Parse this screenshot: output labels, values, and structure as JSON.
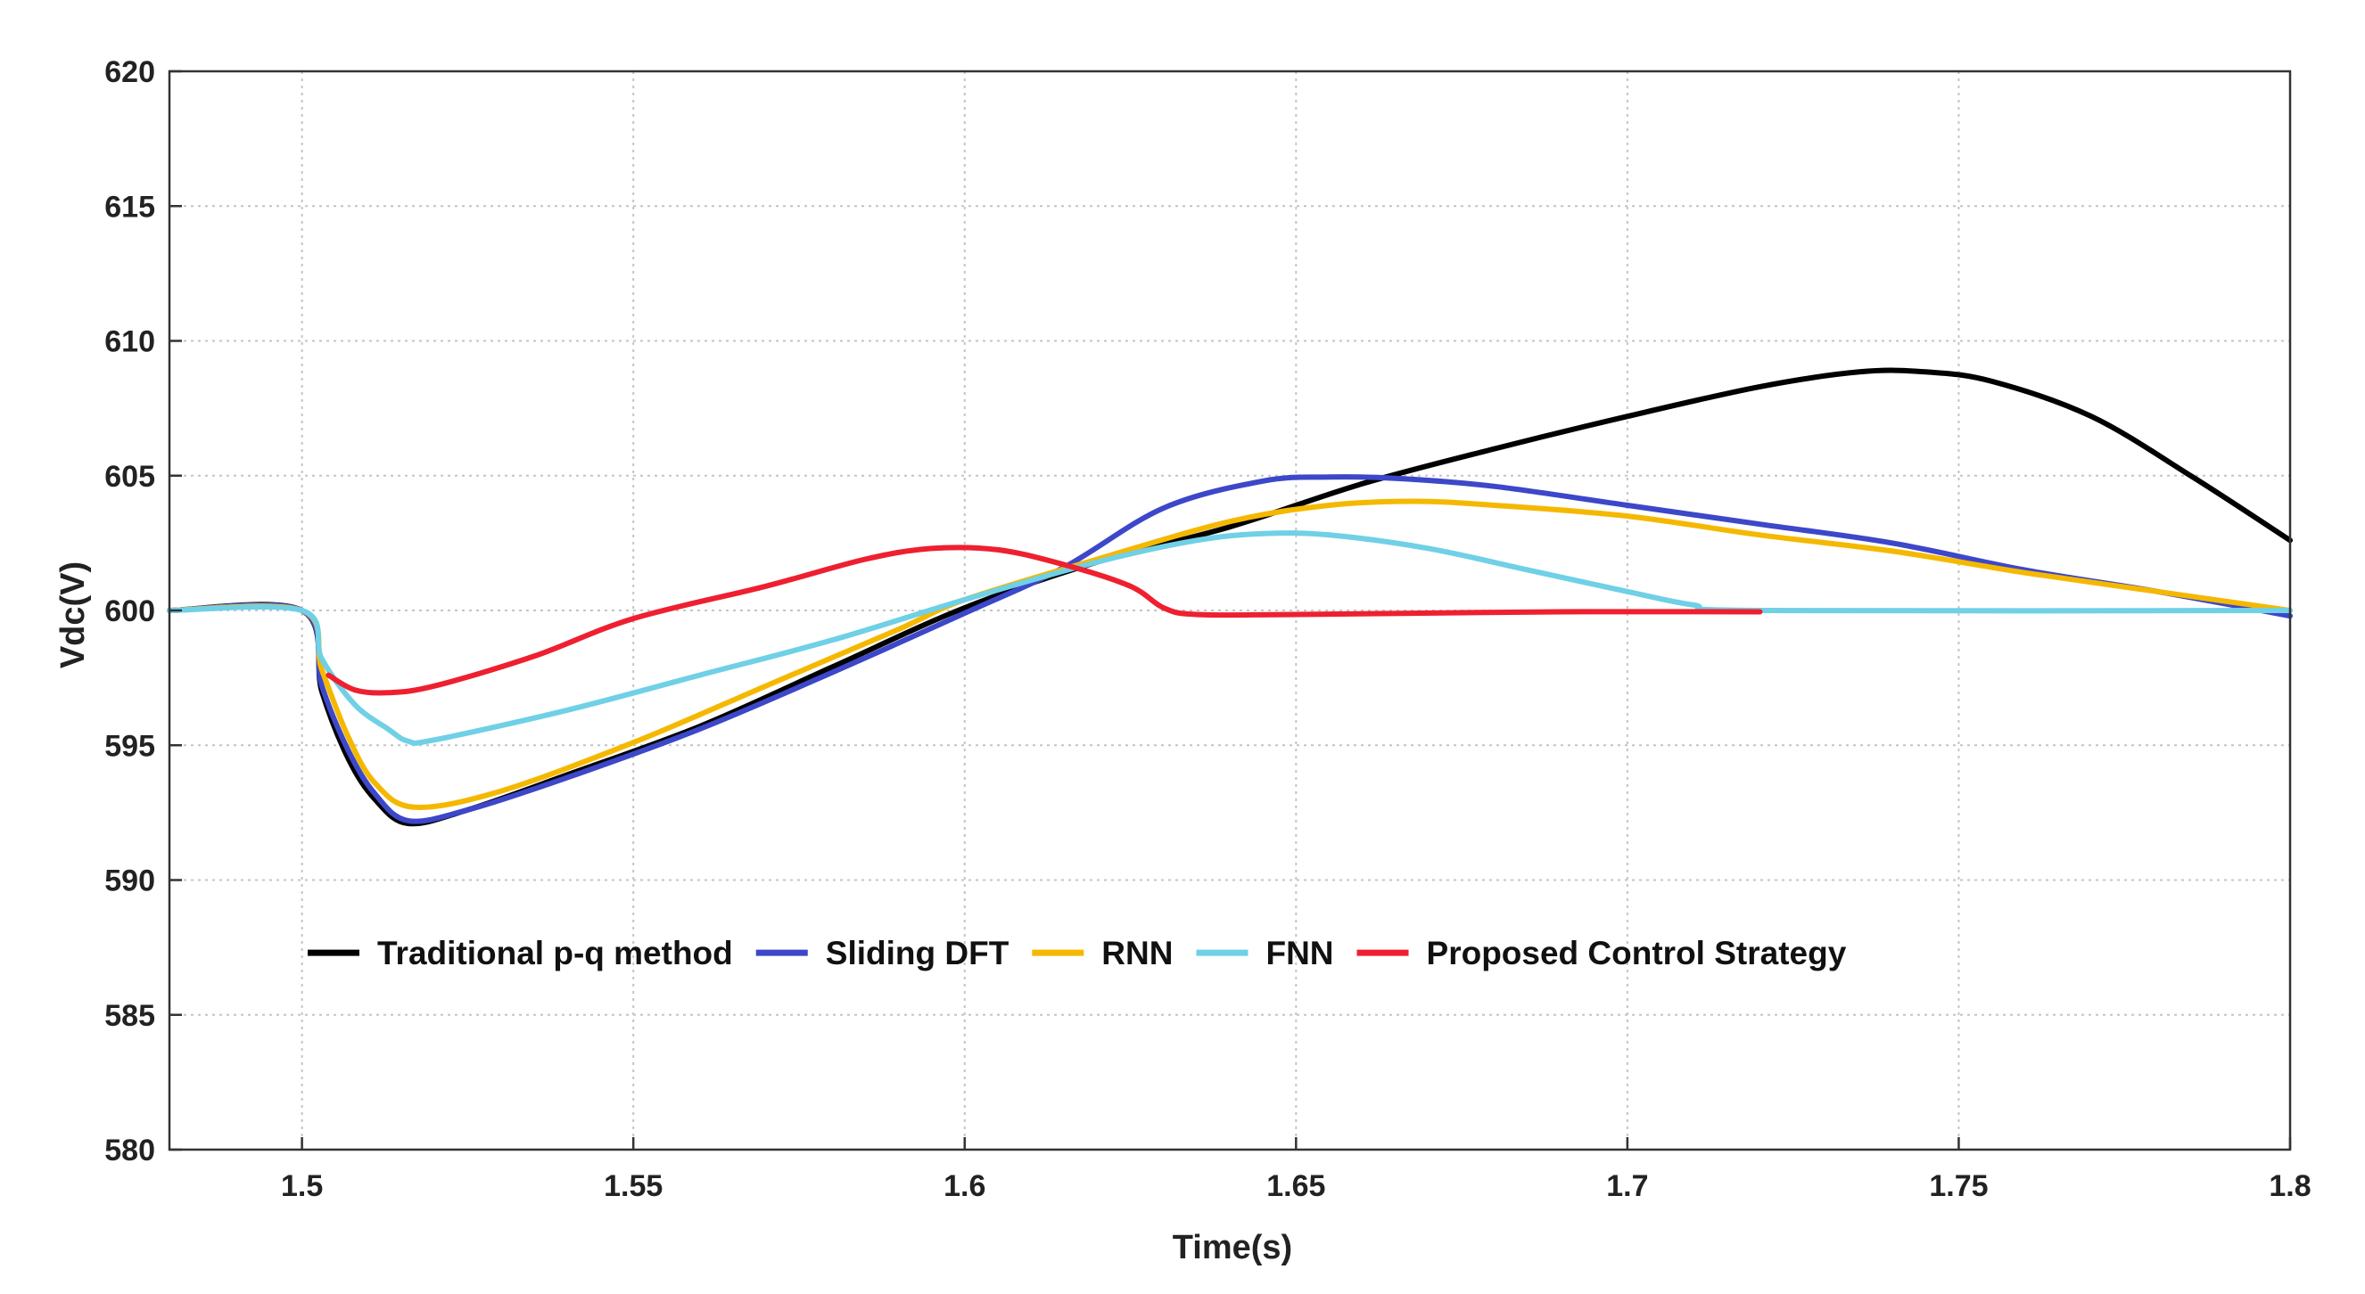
{
  "chart_data": {
    "type": "line",
    "title": "",
    "xlabel": "Time(s)",
    "ylabel": "Vdc(V)",
    "xlim": [
      1.48,
      1.8
    ],
    "ylim": [
      580,
      620
    ],
    "grid": true,
    "legend_position": "lower-center",
    "x_ticks": [
      1.5,
      1.55,
      1.6,
      1.65,
      1.7,
      1.75,
      1.8
    ],
    "x_tick_labels": [
      "1.5",
      "1.55",
      "1.6",
      "1.65",
      "1.7",
      "1.75",
      "1.8"
    ],
    "y_ticks": [
      580,
      585,
      590,
      595,
      600,
      605,
      610,
      615,
      620
    ],
    "y_tick_labels": [
      "580",
      "585",
      "590",
      "595",
      "600",
      "605",
      "610",
      "615",
      "620"
    ],
    "series": [
      {
        "name": "Traditional p-q method",
        "color": "#000000",
        "points": [
          [
            1.48,
            600
          ],
          [
            1.5,
            600
          ],
          [
            1.503,
            597.0
          ],
          [
            1.507,
            594.5
          ],
          [
            1.511,
            593.0
          ],
          [
            1.516,
            592.1
          ],
          [
            1.525,
            592.6
          ],
          [
            1.54,
            593.9
          ],
          [
            1.56,
            595.7
          ],
          [
            1.58,
            597.9
          ],
          [
            1.6,
            600.1
          ],
          [
            1.62,
            601.8
          ],
          [
            1.64,
            603.1
          ],
          [
            1.66,
            604.7
          ],
          [
            1.68,
            606.0
          ],
          [
            1.7,
            607.2
          ],
          [
            1.72,
            608.3
          ],
          [
            1.735,
            608.85
          ],
          [
            1.745,
            608.85
          ],
          [
            1.755,
            608.5
          ],
          [
            1.77,
            607.2
          ],
          [
            1.785,
            605.0
          ],
          [
            1.8,
            602.6
          ]
        ]
      },
      {
        "name": "Sliding DFT",
        "color": "#3d47c9",
        "points": [
          [
            1.48,
            600
          ],
          [
            1.5,
            600
          ],
          [
            1.503,
            597.2
          ],
          [
            1.507,
            594.8
          ],
          [
            1.511,
            593.2
          ],
          [
            1.516,
            592.2
          ],
          [
            1.525,
            592.6
          ],
          [
            1.54,
            593.8
          ],
          [
            1.56,
            595.6
          ],
          [
            1.58,
            597.7
          ],
          [
            1.6,
            599.9
          ],
          [
            1.615,
            601.6
          ],
          [
            1.63,
            603.8
          ],
          [
            1.645,
            604.8
          ],
          [
            1.655,
            604.95
          ],
          [
            1.665,
            604.9
          ],
          [
            1.68,
            604.6
          ],
          [
            1.7,
            603.9
          ],
          [
            1.72,
            603.2
          ],
          [
            1.74,
            602.5
          ],
          [
            1.76,
            601.5
          ],
          [
            1.78,
            600.7
          ],
          [
            1.8,
            599.8
          ]
        ]
      },
      {
        "name": "RNN",
        "color": "#f5b800",
        "points": [
          [
            1.48,
            600
          ],
          [
            1.5,
            600
          ],
          [
            1.503,
            597.8
          ],
          [
            1.507,
            595.3
          ],
          [
            1.511,
            593.6
          ],
          [
            1.517,
            592.7
          ],
          [
            1.53,
            593.3
          ],
          [
            1.55,
            595.1
          ],
          [
            1.57,
            597.2
          ],
          [
            1.59,
            599.3
          ],
          [
            1.6,
            600.4
          ],
          [
            1.62,
            601.9
          ],
          [
            1.64,
            603.3
          ],
          [
            1.655,
            603.9
          ],
          [
            1.668,
            604.05
          ],
          [
            1.68,
            603.9
          ],
          [
            1.7,
            603.5
          ],
          [
            1.72,
            602.8
          ],
          [
            1.74,
            602.2
          ],
          [
            1.76,
            601.4
          ],
          [
            1.78,
            600.7
          ],
          [
            1.8,
            600.0
          ]
        ]
      },
      {
        "name": "FNN",
        "color": "#6fd0e6",
        "points": [
          [
            1.48,
            600
          ],
          [
            1.5,
            600
          ],
          [
            1.503,
            598.2
          ],
          [
            1.508,
            596.5
          ],
          [
            1.513,
            595.6
          ],
          [
            1.516,
            595.15
          ],
          [
            1.52,
            595.2
          ],
          [
            1.54,
            596.3
          ],
          [
            1.56,
            597.6
          ],
          [
            1.58,
            598.9
          ],
          [
            1.6,
            600.4
          ],
          [
            1.62,
            601.8
          ],
          [
            1.635,
            602.6
          ],
          [
            1.645,
            602.85
          ],
          [
            1.655,
            602.8
          ],
          [
            1.67,
            602.3
          ],
          [
            1.685,
            601.5
          ],
          [
            1.7,
            600.7
          ],
          [
            1.71,
            600.2
          ],
          [
            1.72,
            600.0
          ],
          [
            1.8,
            600.0
          ]
        ]
      },
      {
        "name": "Proposed Control Strategy",
        "color": "#ee2030",
        "points": [
          [
            1.504,
            597.6
          ],
          [
            1.508,
            597.05
          ],
          [
            1.513,
            596.95
          ],
          [
            1.52,
            597.2
          ],
          [
            1.535,
            598.3
          ],
          [
            1.55,
            599.7
          ],
          [
            1.57,
            600.9
          ],
          [
            1.585,
            601.9
          ],
          [
            1.595,
            602.3
          ],
          [
            1.605,
            602.25
          ],
          [
            1.615,
            601.7
          ],
          [
            1.625,
            600.9
          ],
          [
            1.63,
            600.1
          ],
          [
            1.635,
            599.85
          ],
          [
            1.65,
            599.85
          ],
          [
            1.69,
            599.95
          ],
          [
            1.72,
            599.95
          ]
        ]
      }
    ]
  }
}
